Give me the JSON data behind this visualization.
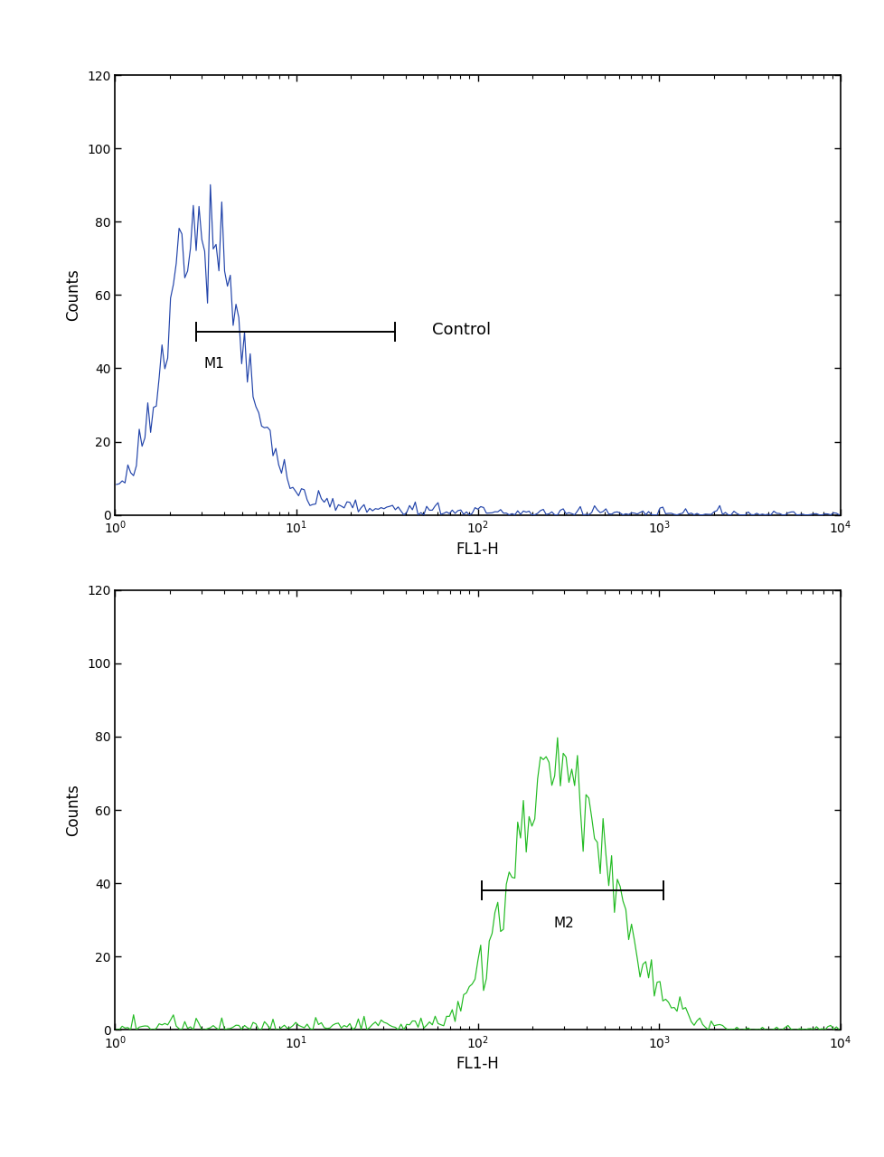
{
  "top_hist_color": "#2244aa",
  "bottom_hist_color": "#22bb22",
  "xlabel": "FL1-H",
  "ylabel": "Counts",
  "ylim": [
    0,
    120
  ],
  "yticks": [
    0,
    20,
    40,
    60,
    80,
    100,
    120
  ],
  "xlim_log": [
    1,
    10000
  ],
  "top_marker_y": 50,
  "top_marker_x1_log": 2.8,
  "top_marker_x2_log": 35,
  "top_label": "Control",
  "top_m1_label": "M1",
  "bottom_marker_y": 38,
  "bottom_marker_x1_log": 105,
  "bottom_marker_x2_log": 1050,
  "bottom_label": "M2",
  "fig_width": 9.79,
  "fig_height": 12.8,
  "background_color": "#ffffff",
  "border_color": "#000000",
  "seed": 42
}
